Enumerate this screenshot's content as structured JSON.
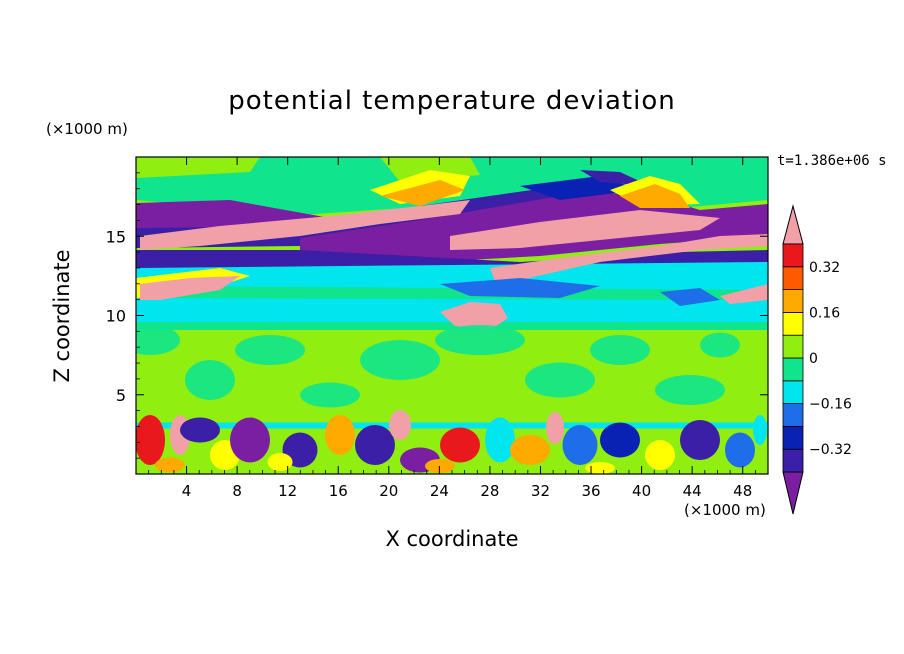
{
  "chart_data": {
    "type": "heatmap",
    "title": "potential temperature deviation",
    "xlabel": "X coordinate",
    "ylabel": "Z coordinate",
    "x_unit": "(×1000 m)",
    "y_unit": "(×1000 m)",
    "time_label": "t=1.386e+06 s",
    "xlim": [
      0,
      50
    ],
    "ylim": [
      0,
      20
    ],
    "x_ticks": [
      4,
      8,
      12,
      16,
      20,
      24,
      28,
      32,
      36,
      40,
      44,
      48
    ],
    "y_ticks": [
      5,
      10,
      15
    ],
    "grid": false,
    "legend": "right",
    "colorbar": {
      "levels": [
        -0.4,
        -0.32,
        -0.24,
        -0.16,
        -0.08,
        0,
        0.08,
        0.16,
        0.24,
        0.32,
        0.4
      ],
      "tick_values": [
        "0.32",
        "0.16",
        "0",
        "−0.16",
        "−0.32"
      ],
      "colors": [
        "#7a1fa2",
        "#3b1fa6",
        "#0a22b4",
        "#1e6eea",
        "#00e5ee",
        "#10e48c",
        "#90ee10",
        "#ffff00",
        "#ffaa00",
        "#ff5a00",
        "#e8181c",
        "#f2a0a8"
      ],
      "extend": "both"
    },
    "regions": [
      {
        "label": "upper-level pink bands",
        "z_range": [
          11,
          17.5
        ],
        "value_sign": "positive"
      },
      {
        "label": "upper-level purple bands",
        "z_range": [
          12.5,
          17
        ],
        "value_sign": "negative"
      },
      {
        "label": "cyan layer",
        "z_range": [
          9.5,
          12.5
        ],
        "value_sign": "slightly negative"
      },
      {
        "label": "boundary-layer turbulence",
        "z_range": [
          0,
          3.5
        ],
        "value_sign": "mixed"
      }
    ]
  }
}
